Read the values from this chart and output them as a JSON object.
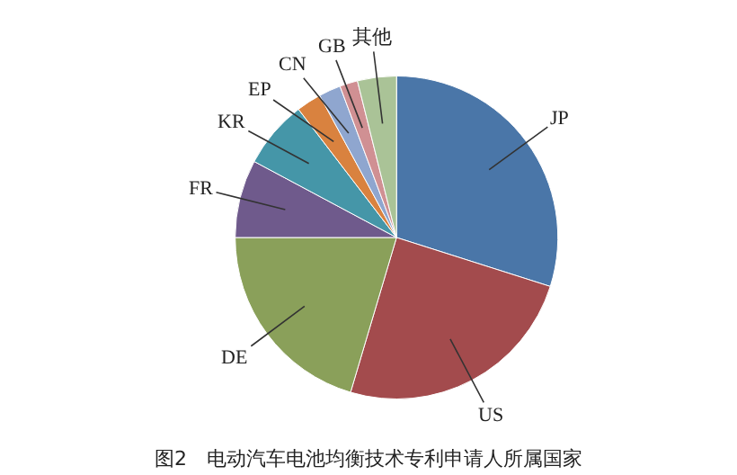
{
  "chart_data": {
    "type": "pie",
    "title": "图2　电动汽车电池均衡技术专利申请人所属国家",
    "categories": [
      "JP",
      "US",
      "DE",
      "FR",
      "KR",
      "EP",
      "CN",
      "GB",
      "其他"
    ],
    "values": [
      29.9,
      24.7,
      20.4,
      7.8,
      6.8,
      2.5,
      2.2,
      1.8,
      3.9
    ],
    "colors": [
      "#4a76a8",
      "#a34b4d",
      "#8aa05a",
      "#6f5a8c",
      "#4596a8",
      "#d9823f",
      "#8fa6cf",
      "#d09093",
      "#aac397"
    ],
    "legend": false
  }
}
